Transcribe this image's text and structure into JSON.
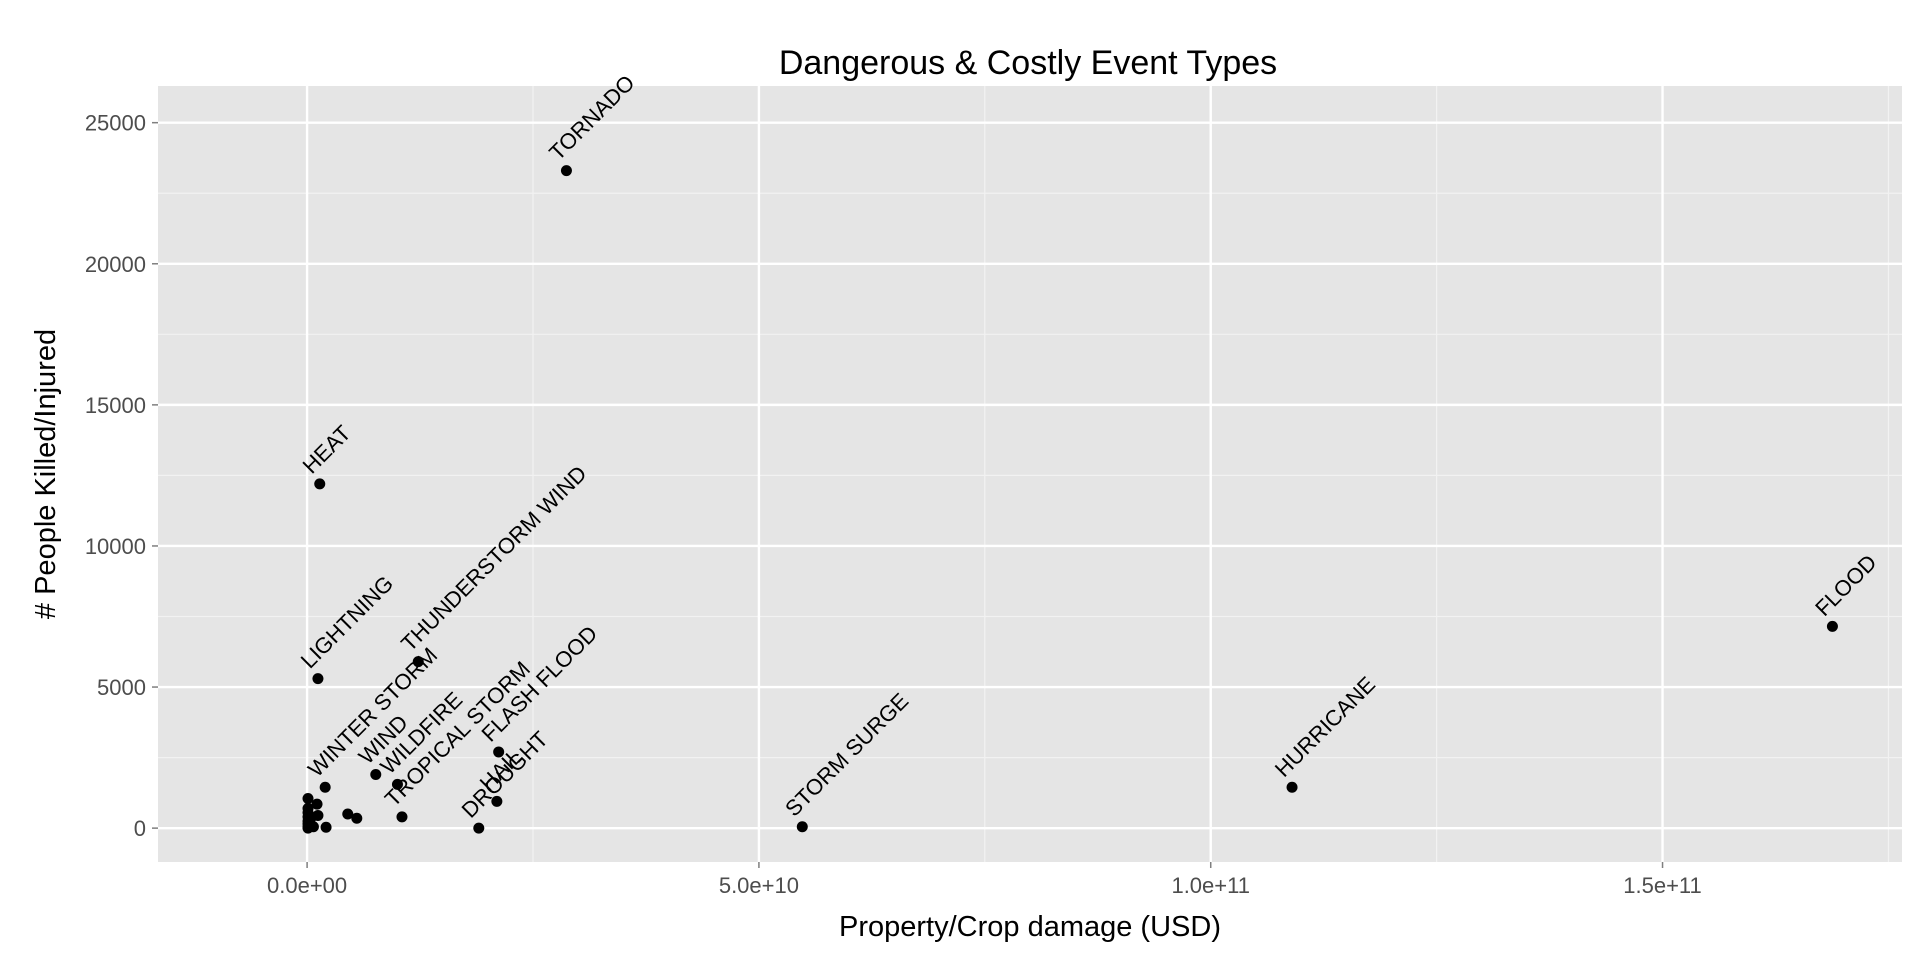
{
  "chart_data": {
    "type": "scatter",
    "title": "Dangerous & Costly Event Types",
    "xlabel": "Property/Crop damage (USD)",
    "ylabel": "# People Killed/Injured",
    "xlim": [
      -16500000000,
      176500000000
    ],
    "ylim": [
      -1200,
      26300
    ],
    "xticks": [
      {
        "value": 0,
        "label": "0.0e+00"
      },
      {
        "value": 50000000000,
        "label": "5.0e+10"
      },
      {
        "value": 100000000000,
        "label": "1.0e+11"
      },
      {
        "value": 150000000000,
        "label": "1.5e+11"
      }
    ],
    "yticks": [
      {
        "value": 0,
        "label": "0"
      },
      {
        "value": 5000,
        "label": "5000"
      },
      {
        "value": 10000,
        "label": "10000"
      },
      {
        "value": 15000,
        "label": "15000"
      },
      {
        "value": 20000,
        "label": "20000"
      },
      {
        "value": 25000,
        "label": "25000"
      }
    ],
    "grid": true,
    "background": "#e5e5e5",
    "point_color": "#000000",
    "points": [
      {
        "x": 28700000000,
        "y": 23300,
        "label": "TORNADO"
      },
      {
        "x": 1400000000,
        "y": 12200,
        "label": "HEAT"
      },
      {
        "x": 1200000000,
        "y": 5300,
        "label": "LIGHTNING"
      },
      {
        "x": 12300000000,
        "y": 5900,
        "label": "THUNDERSTORM WIND"
      },
      {
        "x": 2000000000,
        "y": 1450,
        "label": "WINTER STORM"
      },
      {
        "x": 7600000000,
        "y": 1900,
        "label": "WIND"
      },
      {
        "x": 10000000000,
        "y": 1550,
        "label": "WILDFIRE"
      },
      {
        "x": 10500000000,
        "y": 400,
        "label": "TROPICAL STORM"
      },
      {
        "x": 21200000000,
        "y": 2700,
        "label": "FLASH FLOOD"
      },
      {
        "x": 21000000000,
        "y": 950,
        "label": "HAIL"
      },
      {
        "x": 19000000000,
        "y": 0,
        "label": "DROUGHT"
      },
      {
        "x": 54800000000,
        "y": 50,
        "label": "STORM SURGE"
      },
      {
        "x": 109000000000,
        "y": 1450,
        "label": "HURRICANE"
      },
      {
        "x": 168800000000,
        "y": 7150,
        "label": "FLOOD"
      },
      {
        "x": 100000000,
        "y": 1050,
        "label": ""
      },
      {
        "x": 100000000,
        "y": 700,
        "label": ""
      },
      {
        "x": 100000000,
        "y": 550,
        "label": ""
      },
      {
        "x": 100000000,
        "y": 400,
        "label": ""
      },
      {
        "x": 100000000,
        "y": 250,
        "label": ""
      },
      {
        "x": 100000000,
        "y": 150,
        "label": ""
      },
      {
        "x": 100000000,
        "y": 50,
        "label": ""
      },
      {
        "x": 100000000,
        "y": 0,
        "label": ""
      },
      {
        "x": 400000000,
        "y": 350,
        "label": ""
      },
      {
        "x": 700000000,
        "y": 50,
        "label": ""
      },
      {
        "x": 1100000000,
        "y": 850,
        "label": ""
      },
      {
        "x": 1200000000,
        "y": 450,
        "label": ""
      },
      {
        "x": 2100000000,
        "y": 30,
        "label": ""
      },
      {
        "x": 4500000000,
        "y": 500,
        "label": ""
      },
      {
        "x": 5500000000,
        "y": 350,
        "label": ""
      }
    ]
  }
}
